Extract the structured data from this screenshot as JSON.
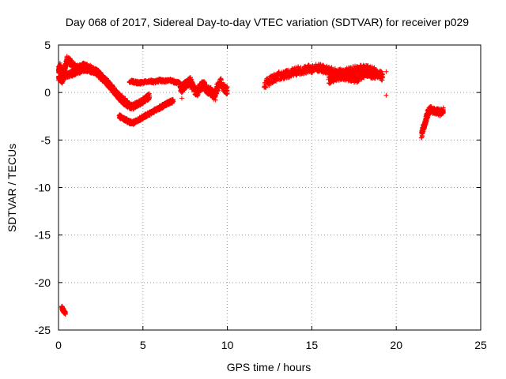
{
  "chart_data": {
    "type": "scatter",
    "title": "Day 068 of 2017, Sidereal Day-to-day VTEC variation (SDTVAR) for receiver p029",
    "xlabel": "GPS time / hours",
    "ylabel": "SDTVAR / TECUs",
    "xlim": [
      0,
      25
    ],
    "ylim": [
      -25,
      5
    ],
    "xticks": [
      0,
      5,
      10,
      15,
      20,
      25
    ],
    "yticks": [
      5,
      0,
      -5,
      -10,
      -15,
      -20,
      -25
    ],
    "grid": true,
    "marker": "+",
    "series": [
      {
        "name": "SDTVAR",
        "color": "#ff0000",
        "segments": [
          {
            "x": [
              0.0,
              0.1,
              0.2,
              0.3,
              0.4,
              0.5,
              0.7,
              0.9,
              1.1,
              1.3,
              1.5,
              1.7,
              1.9,
              2.1,
              2.3,
              2.5,
              2.7,
              2.9,
              3.1,
              3.3,
              3.5,
              3.7,
              3.9,
              4.1
            ],
            "y": [
              2.3,
              2.8,
              2.0,
              1.6,
              2.6,
              3.5,
              3.2,
              2.8,
              2.6,
              2.7,
              2.8,
              2.7,
              2.5,
              2.3,
              2.1,
              1.7,
              1.4,
              1.0,
              0.6,
              0.2,
              -0.2,
              -0.6,
              -0.9,
              -1.1
            ],
            "spread": 0.7
          },
          {
            "x": [
              0.0,
              0.2,
              0.4,
              0.6,
              0.8,
              1.0,
              1.2,
              1.4,
              1.6,
              1.8,
              2.0,
              2.2,
              2.4,
              2.6,
              2.8,
              3.0,
              3.2,
              3.4,
              3.6,
              3.8,
              4.0,
              4.2,
              4.4,
              4.6,
              4.8,
              5.0,
              5.2,
              5.4
            ],
            "y": [
              1.5,
              1.2,
              1.8,
              1.9,
              2.0,
              2.1,
              2.3,
              2.4,
              2.5,
              2.4,
              2.3,
              2.2,
              2.0,
              1.6,
              1.2,
              0.8,
              0.3,
              -0.1,
              -0.5,
              -0.9,
              -1.2,
              -1.4,
              -1.5,
              -1.3,
              -1.1,
              -0.9,
              -0.6,
              -0.4
            ],
            "spread": 0.6
          },
          {
            "x": [
              3.6,
              3.8,
              4.0,
              4.2,
              4.4,
              4.6,
              4.8,
              5.0,
              5.2,
              5.4,
              5.6,
              5.8,
              6.0,
              6.2,
              6.4,
              6.6,
              6.8
            ],
            "y": [
              -2.5,
              -2.7,
              -2.9,
              -3.1,
              -3.2,
              -3.0,
              -2.8,
              -2.6,
              -2.4,
              -2.2,
              -2.0,
              -1.8,
              -1.6,
              -1.4,
              -1.2,
              -1.0,
              -0.9
            ],
            "spread": 0.4
          },
          {
            "x": [
              4.2,
              4.5,
              4.8,
              5.1,
              5.4,
              5.7,
              6.0,
              6.3,
              6.6,
              6.9,
              7.2
            ],
            "y": [
              1.2,
              1.1,
              1.0,
              1.1,
              1.2,
              1.1,
              1.3,
              1.2,
              1.3,
              1.1,
              1.0
            ],
            "spread": 0.3
          },
          {
            "x": [
              7.2,
              7.4,
              7.6,
              7.8,
              8.0,
              8.2,
              8.4,
              8.6,
              8.8,
              9.0,
              9.2,
              9.4,
              9.6,
              9.8,
              10.0
            ],
            "y": [
              0.3,
              0.6,
              0.9,
              1.2,
              0.4,
              0.0,
              0.6,
              0.8,
              0.3,
              0.1,
              -0.3,
              0.5,
              1.1,
              0.4,
              0.2
            ],
            "spread": 0.9
          },
          {
            "x": [
              12.2,
              12.6,
              13.0,
              13.4,
              13.8,
              14.2,
              14.6,
              15.0,
              15.4,
              15.8,
              16.2,
              16.6,
              17.0,
              17.4,
              17.8,
              18.2,
              18.6,
              19.0,
              19.2
            ],
            "y": [
              0.8,
              1.4,
              1.7,
              1.9,
              2.1,
              2.3,
              2.4,
              2.5,
              2.6,
              2.4,
              2.2,
              2.0,
              2.1,
              2.3,
              2.4,
              2.5,
              2.3,
              1.9,
              1.6
            ],
            "spread": 0.9
          },
          {
            "x": [
              16.0,
              16.4,
              16.8,
              17.2,
              17.6,
              18.0,
              18.4,
              18.8
            ],
            "y": [
              1.3,
              1.5,
              1.7,
              1.6,
              1.4,
              1.8,
              2.0,
              1.7
            ],
            "spread": 0.8
          },
          {
            "x": [
              21.5,
              21.6,
              21.7,
              21.8,
              21.9,
              22.0,
              22.2,
              22.4,
              22.6,
              22.8
            ],
            "y": [
              -4.5,
              -3.8,
              -3.2,
              -2.6,
              -2.1,
              -1.8,
              -1.9,
              -2.0,
              -2.1,
              -1.9
            ],
            "spread": 0.7
          },
          {
            "x": [
              0.2,
              0.25,
              0.3,
              0.35,
              0.4
            ],
            "y": [
              -22.6,
              -22.8,
              -23.0,
              -23.1,
              -23.2
            ],
            "spread": 0.3
          }
        ]
      }
    ]
  }
}
